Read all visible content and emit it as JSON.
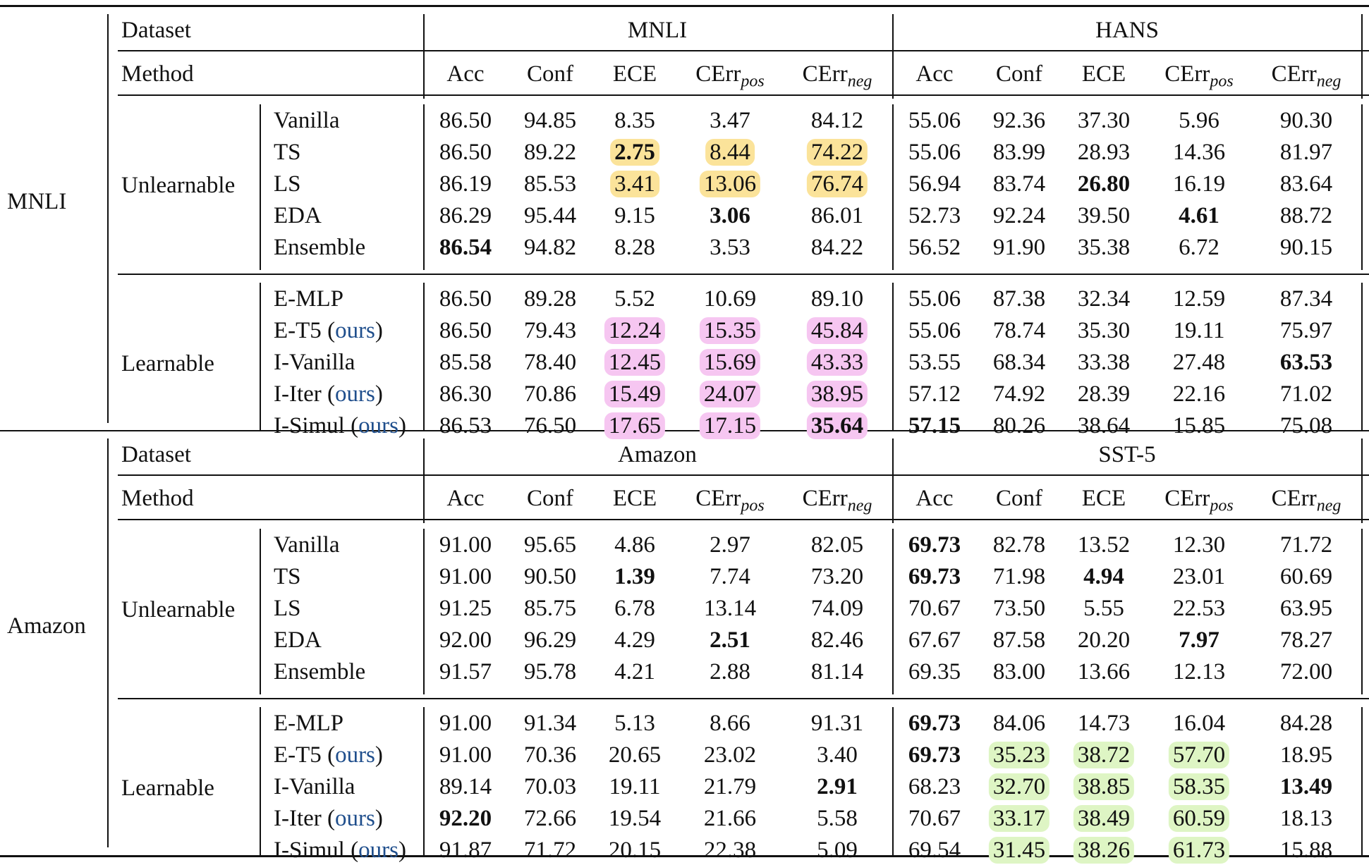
{
  "table": {
    "columns": [
      "Acc",
      "Conf",
      "ECE",
      "CErr_pos",
      "CErr_neg"
    ],
    "col_header_base": "CErr",
    "col_header_pos_sub": "pos",
    "col_header_neg_sub": "neg",
    "dataset_label": "Dataset",
    "method_label": "Method",
    "ours_tag": "ours",
    "highlight_colors": {
      "yellow": "#fbe39a",
      "pink": "#f6c6f1",
      "green": "#def5c4"
    },
    "blocks": [
      {
        "train": "MNLI",
        "test_left": "MNLI",
        "test_right": "HANS",
        "groups": [
          {
            "name": "Unlearnable",
            "rows": [
              {
                "method": "Vanilla",
                "ours": false,
                "left": [
                  "86.50",
                  "94.85",
                  "8.35",
                  "3.47",
                  "84.12"
                ],
                "right": [
                  "55.06",
                  "92.36",
                  "37.30",
                  "5.96",
                  "90.30"
                ]
              },
              {
                "method": "TS",
                "ours": false,
                "left": [
                  "86.50",
                  "89.22",
                  "2.75",
                  "8.44",
                  "74.22"
                ],
                "right": [
                  "55.06",
                  "83.99",
                  "28.93",
                  "14.36",
                  "81.97"
                ]
              },
              {
                "method": "LS",
                "ours": false,
                "left": [
                  "86.19",
                  "85.53",
                  "3.41",
                  "13.06",
                  "76.74"
                ],
                "right": [
                  "56.94",
                  "83.74",
                  "26.80",
                  "16.19",
                  "83.64"
                ]
              },
              {
                "method": "EDA",
                "ours": false,
                "left": [
                  "86.29",
                  "95.44",
                  "9.15",
                  "3.06",
                  "86.01"
                ],
                "right": [
                  "52.73",
                  "92.24",
                  "39.50",
                  "4.61",
                  "88.72"
                ]
              },
              {
                "method": "Ensemble",
                "ours": false,
                "left": [
                  "86.54",
                  "94.82",
                  "8.28",
                  "3.53",
                  "84.22"
                ],
                "right": [
                  "56.52",
                  "91.90",
                  "35.38",
                  "6.72",
                  "90.15"
                ]
              }
            ]
          },
          {
            "name": "Learnable",
            "rows": [
              {
                "method": "E-MLP",
                "ours": false,
                "left": [
                  "86.50",
                  "89.28",
                  "5.52",
                  "10.69",
                  "89.10"
                ],
                "right": [
                  "55.06",
                  "87.38",
                  "32.34",
                  "12.59",
                  "87.34"
                ]
              },
              {
                "method": "E-T5",
                "ours": true,
                "left": [
                  "86.50",
                  "79.43",
                  "12.24",
                  "15.35",
                  "45.84"
                ],
                "right": [
                  "55.06",
                  "78.74",
                  "35.30",
                  "19.11",
                  "75.97"
                ]
              },
              {
                "method": "I-Vanilla",
                "ours": false,
                "left": [
                  "85.58",
                  "78.40",
                  "12.45",
                  "15.69",
                  "43.33"
                ],
                "right": [
                  "53.55",
                  "68.34",
                  "33.38",
                  "27.48",
                  "63.53"
                ]
              },
              {
                "method": "I-Iter",
                "ours": true,
                "left": [
                  "86.30",
                  "70.86",
                  "15.49",
                  "24.07",
                  "38.95"
                ],
                "right": [
                  "57.12",
                  "74.92",
                  "28.39",
                  "22.16",
                  "71.02"
                ]
              },
              {
                "method": "I-Simul",
                "ours": true,
                "left": [
                  "86.53",
                  "76.50",
                  "17.65",
                  "17.15",
                  "35.64"
                ],
                "right": [
                  "57.15",
                  "80.26",
                  "38.64",
                  "15.85",
                  "75.08"
                ]
              }
            ]
          }
        ]
      },
      {
        "train": "Amazon",
        "test_left": "Amazon",
        "test_right": "SST-5",
        "groups": [
          {
            "name": "Unlearnable",
            "rows": [
              {
                "method": "Vanilla",
                "ours": false,
                "left": [
                  "91.00",
                  "95.65",
                  "4.86",
                  "2.97",
                  "82.05"
                ],
                "right": [
                  "69.73",
                  "82.78",
                  "13.52",
                  "12.30",
                  "71.72"
                ]
              },
              {
                "method": "TS",
                "ours": false,
                "left": [
                  "91.00",
                  "90.50",
                  "1.39",
                  "7.74",
                  "73.20"
                ],
                "right": [
                  "69.73",
                  "71.98",
                  "4.94",
                  "23.01",
                  "60.69"
                ]
              },
              {
                "method": "LS",
                "ours": false,
                "left": [
                  "91.25",
                  "85.75",
                  "6.78",
                  "13.14",
                  "74.09"
                ],
                "right": [
                  "70.67",
                  "73.50",
                  "5.55",
                  "22.53",
                  "63.95"
                ]
              },
              {
                "method": "EDA",
                "ours": false,
                "left": [
                  "92.00",
                  "96.29",
                  "4.29",
                  "2.51",
                  "82.46"
                ],
                "right": [
                  "67.67",
                  "87.58",
                  "20.20",
                  "7.97",
                  "78.27"
                ]
              },
              {
                "method": "Ensemble",
                "ours": false,
                "left": [
                  "91.57",
                  "95.78",
                  "4.21",
                  "2.88",
                  "81.14"
                ],
                "right": [
                  "69.35",
                  "83.00",
                  "13.66",
                  "12.13",
                  "72.00"
                ]
              }
            ]
          },
          {
            "name": "Learnable",
            "rows": [
              {
                "method": "E-MLP",
                "ours": false,
                "left": [
                  "91.00",
                  "91.34",
                  "5.13",
                  "8.66",
                  "91.31"
                ],
                "right": [
                  "69.73",
                  "84.06",
                  "14.73",
                  "16.04",
                  "84.28"
                ]
              },
              {
                "method": "E-T5",
                "ours": true,
                "left": [
                  "91.00",
                  "70.36",
                  "20.65",
                  "23.02",
                  "3.40"
                ],
                "right": [
                  "69.73",
                  "35.23",
                  "38.72",
                  "57.70",
                  "18.95"
                ]
              },
              {
                "method": "I-Vanilla",
                "ours": false,
                "left": [
                  "89.14",
                  "70.03",
                  "19.11",
                  "21.79",
                  "2.91"
                ],
                "right": [
                  "68.23",
                  "32.70",
                  "38.85",
                  "58.35",
                  "13.49"
                ]
              },
              {
                "method": "I-Iter",
                "ours": true,
                "left": [
                  "92.20",
                  "72.66",
                  "19.54",
                  "21.66",
                  "5.58"
                ],
                "right": [
                  "70.67",
                  "33.17",
                  "38.49",
                  "60.59",
                  "18.13"
                ]
              },
              {
                "method": "I-Simul",
                "ours": true,
                "left": [
                  "91.87",
                  "71.72",
                  "20.15",
                  "22.38",
                  "5.09"
                ],
                "right": [
                  "69.54",
                  "31.45",
                  "38.26",
                  "61.73",
                  "15.88"
                ]
              }
            ]
          }
        ]
      }
    ],
    "bold_cells": [
      "0-0-1-l-2",
      "0-0-2-r-2",
      "0-0-3-l-3",
      "0-0-3-r-3",
      "0-0-4-l-0",
      "0-1-2-r-4",
      "0-1-4-l-4",
      "0-1-4-r-0",
      "1-0-0-r-0",
      "1-0-1-l-2",
      "1-0-1-r-0",
      "1-0-1-r-2",
      "1-0-3-l-3",
      "1-0-3-r-3",
      "1-1-0-r-0",
      "1-1-1-r-0",
      "1-1-2-l-4",
      "1-1-2-r-4",
      "1-1-3-l-0"
    ],
    "highlight_cells": {
      "yellow": [
        "0-0-1-l-2",
        "0-0-1-l-3",
        "0-0-1-l-4",
        "0-0-2-l-2",
        "0-0-2-l-3",
        "0-0-2-l-4"
      ],
      "pink": [
        "0-1-1-l-2",
        "0-1-1-l-3",
        "0-1-1-l-4",
        "0-1-2-l-2",
        "0-1-2-l-3",
        "0-1-2-l-4",
        "0-1-3-l-2",
        "0-1-3-l-3",
        "0-1-3-l-4",
        "0-1-4-l-2",
        "0-1-4-l-3",
        "0-1-4-l-4"
      ],
      "green": [
        "1-1-1-r-1",
        "1-1-1-r-2",
        "1-1-1-r-3",
        "1-1-2-r-1",
        "1-1-2-r-2",
        "1-1-2-r-3",
        "1-1-3-r-1",
        "1-1-3-r-2",
        "1-1-3-r-3",
        "1-1-4-r-1",
        "1-1-4-r-2",
        "1-1-4-r-3"
      ]
    }
  }
}
